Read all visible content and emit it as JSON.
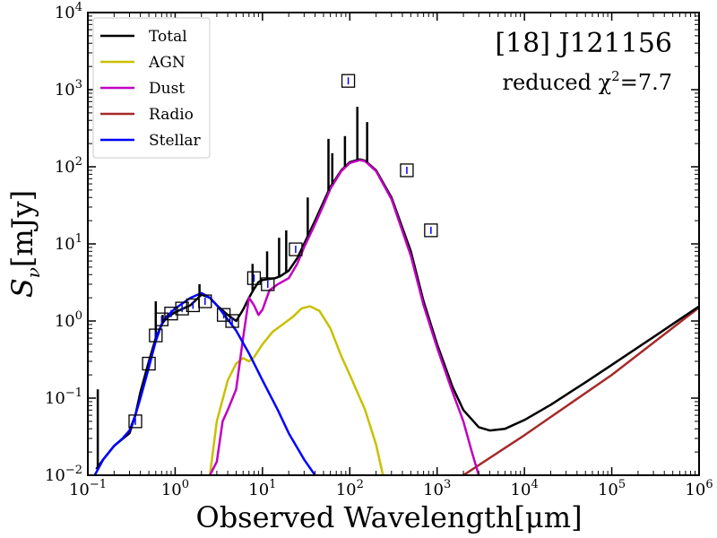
{
  "chart_data": {
    "type": "line",
    "title": "[18] J121156",
    "subtitle": "reduced χ²=7.7",
    "subtitle_prefix": "reduced χ",
    "subtitle_sup": "2",
    "subtitle_suffix": "=7.7",
    "xlabel": "Observed Wavelength[μm]",
    "ylabel": "S_ν[mJy]",
    "xscale": "log",
    "yscale": "log",
    "xlim": [
      0.1,
      1000000
    ],
    "ylim": [
      0.01,
      10000
    ],
    "xticks": [
      {
        "value": 0.1,
        "base": "10",
        "exp": "−1"
      },
      {
        "value": 1,
        "base": "10",
        "exp": "0"
      },
      {
        "value": 10,
        "base": "10",
        "exp": "1"
      },
      {
        "value": 100,
        "base": "10",
        "exp": "2"
      },
      {
        "value": 1000,
        "base": "10",
        "exp": "3"
      },
      {
        "value": 10000,
        "base": "10",
        "exp": "4"
      },
      {
        "value": 100000,
        "base": "10",
        "exp": "5"
      },
      {
        "value": 1000000,
        "base": "10",
        "exp": "6"
      }
    ],
    "yticks": [
      {
        "value": 0.01,
        "base": "10",
        "exp": "−2"
      },
      {
        "value": 0.1,
        "base": "10",
        "exp": "−1"
      },
      {
        "value": 1,
        "base": "10",
        "exp": "0"
      },
      {
        "value": 10,
        "base": "10",
        "exp": "1"
      },
      {
        "value": 100,
        "base": "10",
        "exp": "2"
      },
      {
        "value": 1000,
        "base": "10",
        "exp": "3"
      },
      {
        "value": 10000,
        "base": "10",
        "exp": "4"
      }
    ],
    "legend_location": "top-left",
    "series": [
      {
        "name": "Total",
        "color": "#000000",
        "points": [
          [
            0.125,
            0.012
          ],
          [
            0.15,
            0.016
          ],
          [
            0.2,
            0.024
          ],
          [
            0.3,
            0.035
          ],
          [
            0.35,
            0.06
          ],
          [
            0.4,
            0.12
          ],
          [
            0.5,
            0.3
          ],
          [
            0.6,
            0.6
          ],
          [
            0.7,
            0.9
          ],
          [
            0.8,
            1.1
          ],
          [
            1,
            1.3
          ],
          [
            1.5,
            1.6
          ],
          [
            2,
            2.2
          ],
          [
            2.5,
            2.0
          ],
          [
            3,
            1.6
          ],
          [
            4,
            1.2
          ],
          [
            5,
            1.0
          ],
          [
            6,
            1.4
          ],
          [
            7,
            2.0
          ],
          [
            8,
            2.6
          ],
          [
            9,
            3.2
          ],
          [
            10,
            3.4
          ],
          [
            12,
            3.5
          ],
          [
            14,
            3.6
          ],
          [
            16,
            3.8
          ],
          [
            20,
            4.5
          ],
          [
            25,
            6.5
          ],
          [
            30,
            10
          ],
          [
            40,
            20
          ],
          [
            50,
            35
          ],
          [
            60,
            55
          ],
          [
            80,
            90
          ],
          [
            100,
            115
          ],
          [
            130,
            125
          ],
          [
            150,
            120
          ],
          [
            200,
            90
          ],
          [
            300,
            40
          ],
          [
            500,
            8
          ],
          [
            700,
            1.8
          ],
          [
            1000,
            0.5
          ],
          [
            1500,
            0.14
          ],
          [
            2000,
            0.07
          ],
          [
            3000,
            0.042
          ],
          [
            4000,
            0.038
          ],
          [
            6000,
            0.04
          ],
          [
            10000,
            0.052
          ],
          [
            20000,
            0.082
          ],
          [
            50000,
            0.16
          ],
          [
            100000,
            0.27
          ],
          [
            300000,
            0.62
          ],
          [
            1000000,
            1.55
          ]
        ]
      },
      {
        "name": "AGN",
        "color": "#c8c000",
        "points": [
          [
            2.5,
            0.01
          ],
          [
            3,
            0.05
          ],
          [
            4,
            0.17
          ],
          [
            5,
            0.28
          ],
          [
            6,
            0.33
          ],
          [
            7,
            0.3
          ],
          [
            8,
            0.34
          ],
          [
            10,
            0.5
          ],
          [
            13,
            0.72
          ],
          [
            17,
            0.9
          ],
          [
            22,
            1.12
          ],
          [
            28,
            1.45
          ],
          [
            35,
            1.55
          ],
          [
            45,
            1.35
          ],
          [
            60,
            0.8
          ],
          [
            80,
            0.35
          ],
          [
            100,
            0.2
          ],
          [
            150,
            0.07
          ],
          [
            200,
            0.025
          ],
          [
            240,
            0.01
          ]
        ]
      },
      {
        "name": "Dust",
        "color": "#c000c0",
        "points": [
          [
            2.5,
            0.01
          ],
          [
            3,
            0.015
          ],
          [
            3.5,
            0.05
          ],
          [
            4,
            0.07
          ],
          [
            5,
            0.13
          ],
          [
            6,
            0.6
          ],
          [
            7,
            2.0
          ],
          [
            8,
            1.6
          ],
          [
            9,
            1.2
          ],
          [
            10,
            1.4
          ],
          [
            12,
            2.5
          ],
          [
            15,
            3.0
          ],
          [
            20,
            3.6
          ],
          [
            25,
            5.5
          ],
          [
            30,
            9
          ],
          [
            40,
            18
          ],
          [
            50,
            32
          ],
          [
            60,
            52
          ],
          [
            80,
            88
          ],
          [
            100,
            112
          ],
          [
            130,
            122
          ],
          [
            150,
            118
          ],
          [
            200,
            88
          ],
          [
            300,
            38
          ],
          [
            500,
            7
          ],
          [
            700,
            1.6
          ],
          [
            1000,
            0.45
          ],
          [
            1500,
            0.12
          ],
          [
            2000,
            0.05
          ],
          [
            2500,
            0.02
          ],
          [
            3000,
            0.01
          ]
        ]
      },
      {
        "name": "Radio",
        "color": "#a52a2a",
        "points": [
          [
            2000,
            0.01
          ],
          [
            10000,
            0.033
          ],
          [
            100000,
            0.2
          ],
          [
            1000000,
            1.5
          ]
        ]
      },
      {
        "name": "Stellar",
        "color": "#0000ff",
        "points": [
          [
            0.12,
            0.01
          ],
          [
            0.15,
            0.016
          ],
          [
            0.2,
            0.024
          ],
          [
            0.25,
            0.03
          ],
          [
            0.3,
            0.038
          ],
          [
            0.35,
            0.06
          ],
          [
            0.4,
            0.1
          ],
          [
            0.5,
            0.25
          ],
          [
            0.6,
            0.55
          ],
          [
            0.7,
            0.9
          ],
          [
            0.8,
            1.15
          ],
          [
            1,
            1.45
          ],
          [
            1.5,
            2.0
          ],
          [
            2,
            2.3
          ],
          [
            2.5,
            2.0
          ],
          [
            3,
            1.6
          ],
          [
            4,
            1.05
          ],
          [
            5,
            0.75
          ],
          [
            7,
            0.38
          ],
          [
            10,
            0.17
          ],
          [
            15,
            0.07
          ],
          [
            20,
            0.035
          ],
          [
            30,
            0.016
          ],
          [
            40,
            0.01
          ]
        ]
      }
    ],
    "observations": [
      {
        "x": 0.35,
        "y": 0.05
      },
      {
        "x": 0.5,
        "y": 0.28
      },
      {
        "x": 0.6,
        "y": 0.65
      },
      {
        "x": 0.7,
        "y": 1.05
      },
      {
        "x": 0.9,
        "y": 1.25
      },
      {
        "x": 1.2,
        "y": 1.45
      },
      {
        "x": 1.6,
        "y": 1.6
      },
      {
        "x": 2.2,
        "y": 1.8
      },
      {
        "x": 3.6,
        "y": 1.2
      },
      {
        "x": 4.5,
        "y": 1.0
      },
      {
        "x": 8.0,
        "y": 3.6
      },
      {
        "x": 11.5,
        "y": 3.0
      },
      {
        "x": 24,
        "y": 8.5
      },
      {
        "x": 96,
        "y": 1300
      },
      {
        "x": 450,
        "y": 90
      },
      {
        "x": 850,
        "y": 15
      }
    ],
    "emission_lines": [
      {
        "x": 0.13,
        "top": 0.13
      },
      {
        "x": 0.6,
        "top": 1.8
      },
      {
        "x": 0.72,
        "top": 1.2
      },
      {
        "x": 1.9,
        "top": 3.0
      },
      {
        "x": 7.7,
        "top": 5.5
      },
      {
        "x": 11.3,
        "top": 8
      },
      {
        "x": 15.5,
        "top": 12
      },
      {
        "x": 18.7,
        "top": 15
      },
      {
        "x": 33,
        "top": 40
      },
      {
        "x": 57,
        "top": 230
      },
      {
        "x": 63,
        "top": 150
      },
      {
        "x": 88,
        "top": 250
      },
      {
        "x": 122,
        "top": 600
      },
      {
        "x": 158,
        "top": 380
      }
    ]
  }
}
